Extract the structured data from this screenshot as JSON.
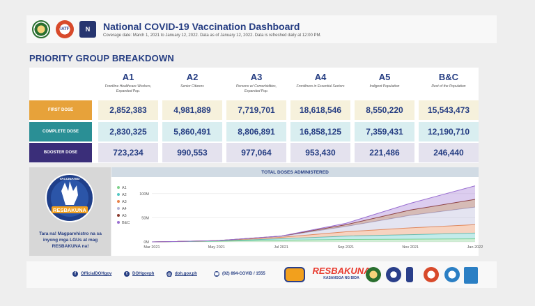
{
  "header": {
    "title": "National COVID-19 Vaccination Dashboard",
    "subtitle": "Coverage date: March 1, 2021 to January 12, 2022. Data as of January 12, 2022. Data is refreshed daily at 12:00 PM.",
    "logos": [
      "doh-seal-icon",
      "iatf-logo-icon",
      "ntf-logo-icon"
    ]
  },
  "section_title": "PRIORITY GROUP BREAKDOWN",
  "groups": [
    {
      "code": "A1",
      "desc": "Frontline Healthcare Workers, Expanded Pop."
    },
    {
      "code": "A2",
      "desc": "Senior Citizens"
    },
    {
      "code": "A3",
      "desc": "Persons w/ Comorbidities, Expanded Pop."
    },
    {
      "code": "A4",
      "desc": "Frontliners in Essential Sectors"
    },
    {
      "code": "A5",
      "desc": "Indigent Population"
    },
    {
      "code": "B&C",
      "desc": "Rest of the Population"
    }
  ],
  "rows": [
    {
      "label": "FIRST DOSE",
      "color": "#e7a23a",
      "values": [
        "2,852,383",
        "4,981,889",
        "7,719,701",
        "18,618,546",
        "8,550,220",
        "15,543,473"
      ]
    },
    {
      "label": "COMPLETE DOSE",
      "color": "#2a8f95",
      "values": [
        "2,830,325",
        "5,860,491",
        "8,806,891",
        "16,858,125",
        "7,359,431",
        "12,190,710"
      ]
    },
    {
      "label": "BOOSTER DOSE",
      "color": "#3a2e79",
      "values": [
        "723,234",
        "990,553",
        "977,064",
        "953,430",
        "221,486",
        "246,440"
      ]
    }
  ],
  "promo": {
    "badge_top": "VACCINATED",
    "badge_bottom": "RESBAKUNA",
    "text": "Tara na! Magparehistro na sa inyong mga LGUs at mag RESBAKUNA na!"
  },
  "chart_data": {
    "type": "area",
    "title": "TOTAL DOSES ADMINISTERED",
    "x": [
      "Mar 2021",
      "May 2021",
      "Jul 2021",
      "Sep 2021",
      "Nov 2021",
      "Jan 2022"
    ],
    "y_ticks": [
      "0M",
      "50M",
      "100M"
    ],
    "ylim": [
      0,
      120
    ],
    "stacked": true,
    "series": [
      {
        "name": "A1",
        "color": "#7fd18b",
        "values": [
          0,
          1.5,
          3.5,
          5,
          5.6,
          6.4
        ]
      },
      {
        "name": "A2",
        "color": "#54c7c4",
        "values": [
          0,
          0.5,
          3,
          7,
          9.5,
          11.8
        ]
      },
      {
        "name": "A3",
        "color": "#e8824a",
        "values": [
          0,
          0.4,
          3,
          9,
          14,
          17.5
        ]
      },
      {
        "name": "A4",
        "color": "#b3b3d6",
        "values": [
          0,
          0.1,
          2,
          11,
          26,
          36.4
        ]
      },
      {
        "name": "A5",
        "color": "#8a3b2e",
        "values": [
          0,
          0,
          0.5,
          3.5,
          11,
          16.1
        ]
      },
      {
        "name": "B&C",
        "color": "#9a6fd1",
        "values": [
          0,
          0,
          0.2,
          3,
          14,
          28
        ]
      }
    ]
  },
  "footer": {
    "facebook": "OfficialDOHgov",
    "twitter": "DOHgovph",
    "website": "doh.gov.ph",
    "phone": "(02) 894-COVID / 1555",
    "logos": [
      "bida-logo-icon",
      "resbakuna-logo-icon",
      "doh-seal-icon",
      "pagasa-seal-icon",
      "ntf-badge-icon",
      "ldrrmo-seal-icon",
      "unicef-logo-icon",
      "undp-logo-icon"
    ],
    "resbakuna_text": "RESBAKUNA",
    "resbakuna_tag": "KASANGGA NG BIDA"
  }
}
